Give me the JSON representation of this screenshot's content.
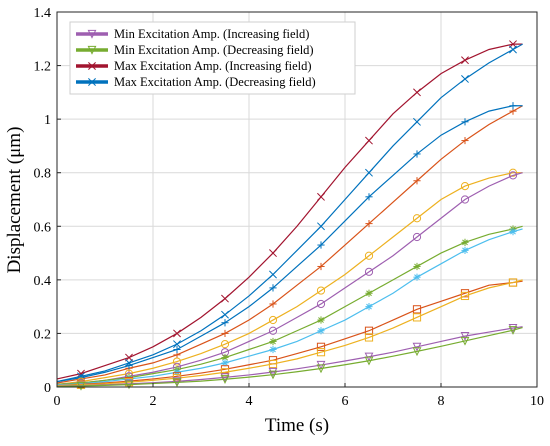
{
  "chart_data": {
    "type": "line",
    "title": "",
    "xlabel": "Time (s)",
    "ylabel": "Displacement (μm)",
    "xlim": [
      0,
      10
    ],
    "ylim": [
      0,
      1.4
    ],
    "xticks": [
      0,
      2,
      4,
      6,
      8,
      10
    ],
    "xtick_labels": [
      "0",
      "2",
      "4",
      "6",
      "8",
      "10"
    ],
    "yticks": [
      0,
      0.2,
      0.4,
      0.6,
      0.8,
      1,
      1.2,
      1.4
    ],
    "ytick_labels": [
      "0",
      "0.2",
      "0.4",
      "0.6",
      "0.8",
      "1",
      "1.2",
      "1.4"
    ],
    "grid": true,
    "legend_position": "top-left",
    "legend": [
      {
        "label": "Min Excitation Amp. (Increasing field)",
        "color": "#9e5fb0",
        "marker": "triangle-down"
      },
      {
        "label": "Min Excitation Amp. (Decreasing field)",
        "color": "#77ac30",
        "marker": "triangle-down"
      },
      {
        "label": "Max Excitation Amp. (Increasing field)",
        "color": "#a2142f",
        "marker": "x"
      },
      {
        "label": "Max Excitation Amp. (Decreasing field)",
        "color": "#0072bd",
        "marker": "x"
      }
    ],
    "series": [
      {
        "color": "#a2142f",
        "marker": "x",
        "x": [
          0,
          0.5,
          1,
          1.5,
          2,
          2.5,
          3,
          3.5,
          4,
          4.5,
          5,
          5.5,
          6,
          6.5,
          7,
          7.5,
          8,
          8.5,
          9,
          9.5,
          9.7
        ],
        "y": [
          0.03,
          0.05,
          0.08,
          0.11,
          0.15,
          0.2,
          0.26,
          0.33,
          0.41,
          0.5,
          0.6,
          0.71,
          0.82,
          0.92,
          1.02,
          1.1,
          1.17,
          1.22,
          1.26,
          1.28,
          1.28
        ]
      },
      {
        "color": "#0072bd",
        "marker": "x",
        "x": [
          0,
          0.5,
          1,
          1.5,
          2,
          2.5,
          3,
          3.5,
          4,
          4.5,
          5,
          5.5,
          6,
          6.5,
          7,
          7.5,
          8,
          8.5,
          9,
          9.5,
          9.7
        ],
        "y": [
          0.02,
          0.04,
          0.06,
          0.09,
          0.12,
          0.16,
          0.21,
          0.27,
          0.34,
          0.42,
          0.51,
          0.6,
          0.7,
          0.8,
          0.9,
          0.99,
          1.08,
          1.15,
          1.21,
          1.26,
          1.28
        ]
      },
      {
        "color": "#d95319",
        "marker": "plus",
        "x": [
          0,
          0.5,
          1,
          1.5,
          2,
          2.5,
          3,
          3.5,
          4,
          4.5,
          5,
          5.5,
          6,
          6.5,
          7,
          7.5,
          8,
          8.5,
          9,
          9.5,
          9.7
        ],
        "y": [
          0.015,
          0.03,
          0.045,
          0.07,
          0.09,
          0.12,
          0.16,
          0.2,
          0.25,
          0.31,
          0.38,
          0.45,
          0.53,
          0.61,
          0.69,
          0.77,
          0.85,
          0.92,
          0.98,
          1.03,
          1.05
        ]
      },
      {
        "color": "#0072bd",
        "marker": "plus",
        "x": [
          0,
          0.5,
          1,
          1.5,
          2,
          2.5,
          3,
          3.5,
          4,
          4.5,
          5,
          5.5,
          6,
          6.5,
          7,
          7.5,
          8,
          8.5,
          9,
          9.5,
          9.7
        ],
        "y": [
          0.02,
          0.035,
          0.055,
          0.08,
          0.11,
          0.14,
          0.19,
          0.24,
          0.3,
          0.37,
          0.45,
          0.53,
          0.62,
          0.71,
          0.79,
          0.87,
          0.94,
          0.99,
          1.03,
          1.05,
          1.05
        ]
      },
      {
        "color": "#edb120",
        "marker": "circle",
        "x": [
          0,
          0.5,
          1,
          1.5,
          2,
          2.5,
          3,
          3.5,
          4,
          4.5,
          5,
          5.5,
          6,
          6.5,
          7,
          7.5,
          8,
          8.5,
          9,
          9.5,
          9.7
        ],
        "y": [
          0.01,
          0.02,
          0.035,
          0.05,
          0.07,
          0.095,
          0.125,
          0.16,
          0.2,
          0.25,
          0.3,
          0.36,
          0.42,
          0.49,
          0.56,
          0.63,
          0.7,
          0.75,
          0.78,
          0.8,
          0.8
        ]
      },
      {
        "color": "#9e5fb0",
        "marker": "circle",
        "x": [
          0,
          0.5,
          1,
          1.5,
          2,
          2.5,
          3,
          3.5,
          4,
          4.5,
          5,
          5.5,
          6,
          6.5,
          7,
          7.5,
          8,
          8.5,
          9,
          9.5,
          9.7
        ],
        "y": [
          0.01,
          0.015,
          0.025,
          0.04,
          0.055,
          0.075,
          0.1,
          0.13,
          0.17,
          0.21,
          0.26,
          0.31,
          0.37,
          0.43,
          0.49,
          0.56,
          0.63,
          0.7,
          0.75,
          0.79,
          0.8
        ]
      },
      {
        "color": "#77ac30",
        "marker": "asterisk",
        "x": [
          0,
          0.5,
          1,
          1.5,
          2,
          2.5,
          3,
          3.5,
          4,
          4.5,
          5,
          5.5,
          6,
          6.5,
          7,
          7.5,
          8,
          8.5,
          9,
          9.5,
          9.7
        ],
        "y": [
          0.01,
          0.015,
          0.025,
          0.035,
          0.05,
          0.065,
          0.085,
          0.11,
          0.14,
          0.17,
          0.21,
          0.25,
          0.3,
          0.35,
          0.4,
          0.45,
          0.5,
          0.54,
          0.57,
          0.59,
          0.6
        ]
      },
      {
        "color": "#4dbeee",
        "marker": "asterisk",
        "x": [
          0,
          0.5,
          1,
          1.5,
          2,
          2.5,
          3,
          3.5,
          4,
          4.5,
          5,
          5.5,
          6,
          6.5,
          7,
          7.5,
          8,
          8.5,
          9,
          9.5,
          9.7
        ],
        "y": [
          0.008,
          0.012,
          0.02,
          0.03,
          0.04,
          0.055,
          0.07,
          0.09,
          0.115,
          0.14,
          0.17,
          0.21,
          0.25,
          0.3,
          0.35,
          0.41,
          0.46,
          0.51,
          0.55,
          0.58,
          0.59
        ]
      },
      {
        "color": "#d95319",
        "marker": "square",
        "x": [
          0,
          0.5,
          1,
          1.5,
          2,
          2.5,
          3,
          3.5,
          4,
          4.5,
          5,
          5.5,
          6,
          6.5,
          7,
          7.5,
          8,
          8.5,
          9,
          9.5,
          9.7
        ],
        "y": [
          0.005,
          0.01,
          0.015,
          0.022,
          0.03,
          0.04,
          0.052,
          0.066,
          0.083,
          0.1,
          0.125,
          0.15,
          0.18,
          0.21,
          0.25,
          0.29,
          0.32,
          0.35,
          0.38,
          0.39,
          0.395
        ]
      },
      {
        "color": "#edb120",
        "marker": "square",
        "x": [
          0,
          0.5,
          1,
          1.5,
          2,
          2.5,
          3,
          3.5,
          4,
          4.5,
          5,
          5.5,
          6,
          6.5,
          7,
          7.5,
          8,
          8.5,
          9,
          9.5,
          9.7
        ],
        "y": [
          0.005,
          0.008,
          0.012,
          0.018,
          0.025,
          0.033,
          0.043,
          0.055,
          0.07,
          0.086,
          0.105,
          0.13,
          0.155,
          0.185,
          0.22,
          0.26,
          0.3,
          0.34,
          0.37,
          0.39,
          0.4
        ]
      },
      {
        "color": "#9e5fb0",
        "marker": "triangle-down",
        "x": [
          0,
          0.5,
          1,
          1.5,
          2,
          2.5,
          3,
          3.5,
          4,
          4.5,
          5,
          5.5,
          6,
          6.5,
          7,
          7.5,
          8,
          8.5,
          9,
          9.5,
          9.7
        ],
        "y": [
          0.003,
          0.005,
          0.008,
          0.012,
          0.016,
          0.021,
          0.028,
          0.036,
          0.045,
          0.056,
          0.068,
          0.082,
          0.097,
          0.113,
          0.13,
          0.15,
          0.17,
          0.19,
          0.205,
          0.22,
          0.225
        ]
      },
      {
        "color": "#77ac30",
        "marker": "triangle-down",
        "x": [
          0,
          0.5,
          1,
          1.5,
          2,
          2.5,
          3,
          3.5,
          4,
          4.5,
          5,
          5.5,
          6,
          6.5,
          7,
          7.5,
          8,
          8.5,
          9,
          9.5,
          9.7
        ],
        "y": [
          0.002,
          0.004,
          0.006,
          0.009,
          0.013,
          0.017,
          0.022,
          0.029,
          0.037,
          0.046,
          0.057,
          0.069,
          0.083,
          0.098,
          0.115,
          0.133,
          0.152,
          0.172,
          0.192,
          0.212,
          0.222
        ]
      }
    ]
  }
}
